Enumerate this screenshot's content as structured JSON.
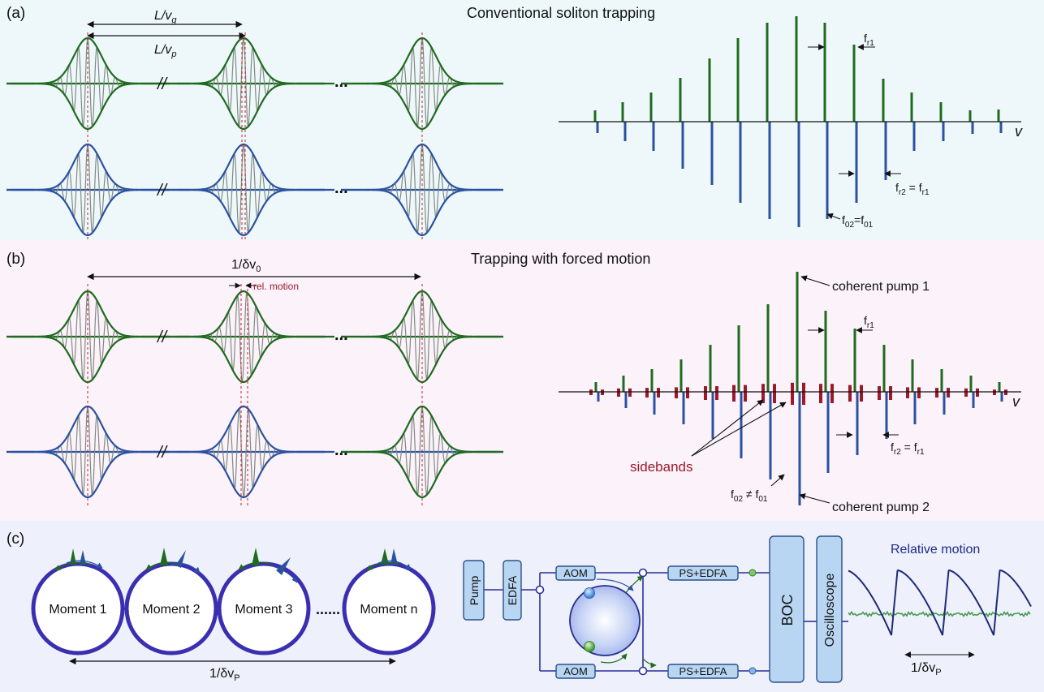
{
  "panel_a": {
    "label": "(a)",
    "title": "Conventional soliton trapping",
    "delay_group": "L/v",
    "delay_group_sub": "g",
    "delay_phase": "L/v",
    "delay_phase_sub": "p",
    "break_mark": "//",
    "dots": "...",
    "axis_label": "v",
    "fr1": "f",
    "fr1_sub": "r1",
    "fr2_a": "f",
    "fr2_sub": "r2",
    "fr2_eq": " = f",
    "fr2_sub2": "r1",
    "f0_a": "f",
    "f0_sub": "02",
    "f0_eq": "=f",
    "f0_sub2": "01"
  },
  "panel_b": {
    "label": "(b)",
    "title": "Trapping with forced motion",
    "period": "1/δv",
    "period_sub": "0",
    "rel_motion": "rel. motion",
    "break_mark": "//",
    "dots": "...",
    "axis_label": "v",
    "pump1": "coherent pump 1",
    "pump2": "coherent pump 2",
    "sidebands": "sidebands",
    "fr1": "f",
    "fr1_sub": "r1",
    "fr2_a": "f",
    "fr2_sub": "r2",
    "fr2_eq": " = f",
    "fr2_sub2": "r1",
    "f0_a": "f",
    "f0_sub": "02",
    "f0_eq": " ≠ f",
    "f0_sub2": "01"
  },
  "panel_c": {
    "label": "(c)",
    "moments": [
      "Moment 1",
      "Moment 2",
      "Moment 3",
      "Moment n"
    ],
    "dots": "......",
    "period": "1/δv",
    "period_sub": "P",
    "pump": "Pump",
    "edfa": "EDFA",
    "aom_top": "AOM",
    "aom_bottom": "AOM",
    "ps_top": "PS+EDFA",
    "ps_bottom": "PS+EDFA",
    "boc": "BOC",
    "scope": "Oscilloscope",
    "trace_title": "Relative motion",
    "trace_period": "1/δv",
    "trace_period_sub": "P"
  },
  "colors": {
    "green": "#1f6b1f",
    "blue": "#2a52a0",
    "gray": "#808a80",
    "red_dash": "#c0202a",
    "sideband": "#9b1a2a",
    "ring": "#3a2fb0",
    "box_fill": "#b8d6f2",
    "box_stroke": "#2a4f8a",
    "bg_a": "#eef8fb",
    "bg_b": "#fbf2fa",
    "bg_c": "#eef1fb"
  }
}
